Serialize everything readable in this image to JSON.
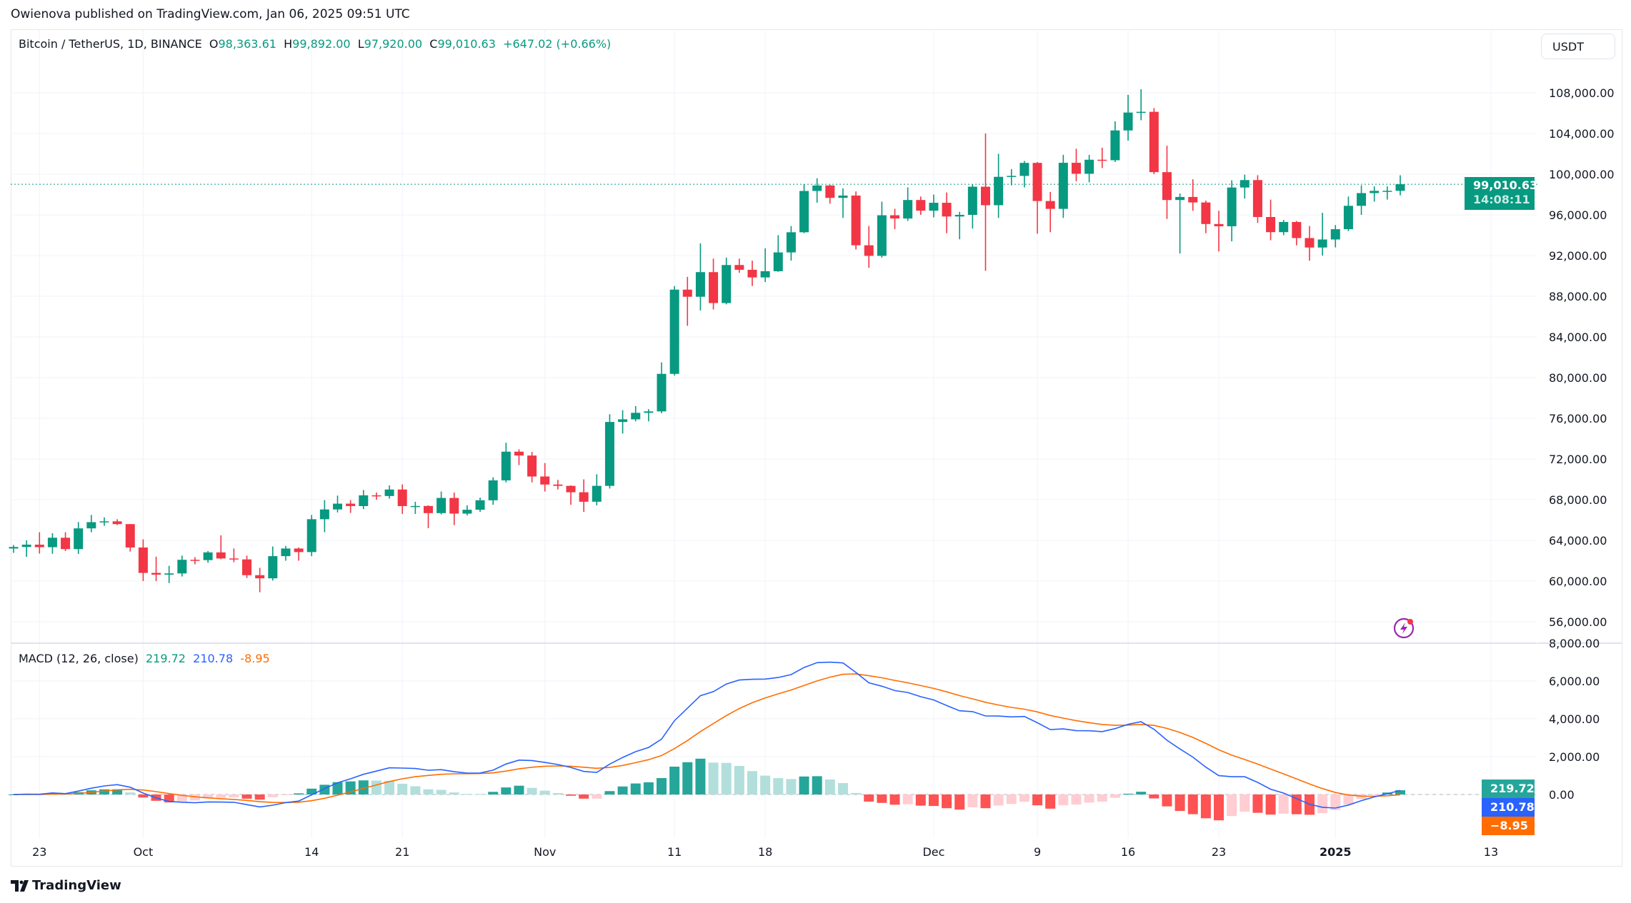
{
  "header": {
    "published": "Owienova published on TradingView.com, Jan 06, 2025 09:51 UTC"
  },
  "legend": {
    "symbol": "Bitcoin / TetherUS, 1D, BINANCE",
    "open_label": "O",
    "open": "98,363.61",
    "high_label": "H",
    "high": "99,892.00",
    "low_label": "L",
    "low": "97,920.00",
    "close_label": "C",
    "close": "99,010.63",
    "change": "+647.02 (+0.66%)"
  },
  "currency_button": "USDT",
  "price_tag": {
    "price": "99,010.63",
    "countdown": "14:08:11"
  },
  "macd_legend": {
    "title": "MACD (12, 26, close)",
    "v1": "219.72",
    "v2": "210.78",
    "v3": "-8.95"
  },
  "macd_tags": {
    "histogram": "219.72",
    "macd": "210.78",
    "signal": "−8.95"
  },
  "footer": {
    "logo_text": "TradingView"
  },
  "colors": {
    "up": "#089981",
    "down": "#f23645",
    "macd": "#2962ff",
    "signal": "#ff6d00",
    "hist_up": "#26a69a",
    "hist_up_light": "#b2dfdb",
    "hist_down": "#ff5252",
    "hist_down_light": "#ffcdd2"
  },
  "icons": {
    "alert": "lightning-icon",
    "logo": "tradingview-logo-icon"
  },
  "chart_data": [
    {
      "type": "candlestick",
      "title": "Bitcoin / TetherUS, 1D, BINANCE",
      "y_ticks": [
        "108,000.00",
        "104,000.00",
        "100,000.00",
        "96,000.00",
        "92,000.00",
        "88,000.00",
        "84,000.00",
        "80,000.00",
        "76,000.00",
        "72,000.00",
        "68,000.00",
        "64,000.00",
        "60,000.00",
        "56,000.00"
      ],
      "x_ticks": [
        "23",
        "Oct",
        "14",
        "21",
        "Nov",
        "11",
        "18",
        "Dec",
        "9",
        "16",
        "23",
        "2025",
        "13"
      ],
      "x_tick_dates": [
        "2024-09-23",
        "2024-10-01",
        "2024-10-14",
        "2024-10-21",
        "2024-11-01",
        "2024-11-11",
        "2024-11-18",
        "2024-12-01",
        "2024-12-09",
        "2024-12-16",
        "2024-12-23",
        "2025-01-01",
        "2025-01-13"
      ],
      "ylim": [
        55000,
        111000
      ],
      "grid": true,
      "candles": [
        [
          "2024-09-21",
          63200,
          63550,
          62770,
          63350
        ],
        [
          "2024-09-22",
          63350,
          64000,
          62380,
          63580
        ],
        [
          "2024-09-23",
          63580,
          64800,
          62700,
          63330
        ],
        [
          "2024-09-24",
          63330,
          64700,
          62680,
          64260
        ],
        [
          "2024-09-25",
          64260,
          64800,
          62950,
          63140
        ],
        [
          "2024-09-26",
          63140,
          65800,
          62670,
          65180
        ],
        [
          "2024-09-27",
          65180,
          66500,
          64800,
          65790
        ],
        [
          "2024-09-28",
          65790,
          66260,
          65430,
          65870
        ],
        [
          "2024-09-29",
          65870,
          66080,
          65500,
          65600
        ],
        [
          "2024-09-30",
          65600,
          65600,
          62900,
          63300
        ],
        [
          "2024-10-01",
          63300,
          64100,
          60000,
          60800
        ],
        [
          "2024-10-02",
          60800,
          62400,
          60000,
          60630
        ],
        [
          "2024-10-03",
          60630,
          61500,
          59800,
          60750
        ],
        [
          "2024-10-04",
          60750,
          62500,
          60450,
          62090
        ],
        [
          "2024-10-05",
          62090,
          62350,
          61650,
          62060
        ],
        [
          "2024-10-06",
          62060,
          62950,
          61800,
          62820
        ],
        [
          "2024-10-07",
          62820,
          64500,
          62150,
          62220
        ],
        [
          "2024-10-08",
          62220,
          63200,
          61850,
          62130
        ],
        [
          "2024-10-09",
          62130,
          62500,
          60300,
          60580
        ],
        [
          "2024-10-10",
          60580,
          61300,
          58900,
          60270
        ],
        [
          "2024-10-11",
          60270,
          63400,
          60050,
          62450
        ],
        [
          "2024-10-12",
          62450,
          63450,
          62000,
          63200
        ],
        [
          "2024-10-13",
          63200,
          63300,
          62000,
          62850
        ],
        [
          "2024-10-14",
          62850,
          66500,
          62450,
          66080
        ],
        [
          "2024-10-15",
          66080,
          67950,
          64800,
          67040
        ],
        [
          "2024-10-16",
          67040,
          68400,
          66750,
          67610
        ],
        [
          "2024-10-17",
          67610,
          67950,
          66700,
          67370
        ],
        [
          "2024-10-18",
          67370,
          68950,
          67070,
          68430
        ],
        [
          "2024-10-19",
          68430,
          68700,
          68000,
          68360
        ],
        [
          "2024-10-20",
          68360,
          69400,
          68100,
          69000
        ],
        [
          "2024-10-21",
          69000,
          69500,
          66600,
          67370
        ],
        [
          "2024-10-22",
          67370,
          67800,
          66600,
          67380
        ],
        [
          "2024-10-23",
          67380,
          67450,
          65200,
          66680
        ],
        [
          "2024-10-24",
          66680,
          68800,
          66550,
          68170
        ],
        [
          "2024-10-25",
          68170,
          68700,
          65500,
          66630
        ],
        [
          "2024-10-26",
          66630,
          67450,
          66450,
          67010
        ],
        [
          "2024-10-27",
          67010,
          68200,
          66800,
          67940
        ],
        [
          "2024-10-28",
          67940,
          70200,
          67500,
          69900
        ],
        [
          "2024-10-29",
          69900,
          73600,
          69700,
          72720
        ],
        [
          "2024-10-30",
          72720,
          72950,
          71400,
          72340
        ],
        [
          "2024-10-31",
          72340,
          72700,
          69700,
          70280
        ],
        [
          "2024-11-01",
          70280,
          71600,
          68800,
          69490
        ],
        [
          "2024-11-02",
          69490,
          69950,
          69000,
          69360
        ],
        [
          "2024-11-03",
          69360,
          69400,
          67500,
          68730
        ],
        [
          "2024-11-04",
          68730,
          70000,
          66800,
          67800
        ],
        [
          "2024-11-05",
          67800,
          70500,
          67450,
          69360
        ],
        [
          "2024-11-06",
          69360,
          76400,
          69100,
          75640
        ],
        [
          "2024-11-07",
          75640,
          76800,
          74500,
          75900
        ],
        [
          "2024-11-08",
          75900,
          77200,
          75700,
          76540
        ],
        [
          "2024-11-09",
          76540,
          76900,
          75700,
          76680
        ],
        [
          "2024-11-10",
          76680,
          81500,
          76500,
          80370
        ],
        [
          "2024-11-11",
          80370,
          89000,
          80200,
          88650
        ],
        [
          "2024-11-12",
          88650,
          89900,
          85100,
          87950
        ],
        [
          "2024-11-13",
          87950,
          93200,
          86600,
          90370
        ],
        [
          "2024-11-14",
          90370,
          91700,
          86700,
          87330
        ],
        [
          "2024-11-15",
          87330,
          91800,
          87200,
          91070
        ],
        [
          "2024-11-16",
          91070,
          91700,
          90300,
          90600
        ],
        [
          "2024-11-17",
          90600,
          91500,
          89000,
          89850
        ],
        [
          "2024-11-18",
          89850,
          92700,
          89400,
          90460
        ],
        [
          "2024-11-19",
          90460,
          94000,
          90400,
          92310
        ],
        [
          "2024-11-20",
          92310,
          94900,
          91500,
          94290
        ],
        [
          "2024-11-21",
          94290,
          99000,
          94200,
          98350
        ],
        [
          "2024-11-22",
          98350,
          99600,
          97200,
          98890
        ],
        [
          "2024-11-23",
          98890,
          98950,
          97100,
          97670
        ],
        [
          "2024-11-24",
          97670,
          98600,
          95700,
          97900
        ],
        [
          "2024-11-25",
          97900,
          98300,
          92600,
          93010
        ],
        [
          "2024-11-26",
          93010,
          94900,
          90800,
          91970
        ],
        [
          "2024-11-27",
          91970,
          97300,
          91800,
          95960
        ],
        [
          "2024-11-28",
          95960,
          96600,
          94600,
          95640
        ],
        [
          "2024-11-29",
          95640,
          98700,
          95400,
          97460
        ],
        [
          "2024-11-30",
          97460,
          97800,
          96000,
          96410
        ],
        [
          "2024-12-01",
          96410,
          98000,
          95750,
          97190
        ],
        [
          "2024-12-02",
          97190,
          98200,
          94200,
          95840
        ],
        [
          "2024-12-03",
          95840,
          96300,
          93600,
          96000
        ],
        [
          "2024-12-04",
          96000,
          99000,
          94650,
          98770
        ],
        [
          "2024-12-05",
          98770,
          104000,
          90500,
          96950
        ],
        [
          "2024-12-06",
          96950,
          102000,
          95700,
          99740
        ],
        [
          "2024-12-07",
          99740,
          100500,
          98900,
          99830
        ],
        [
          "2024-12-08",
          99830,
          101300,
          98700,
          101110
        ],
        [
          "2024-12-09",
          101110,
          101200,
          94150,
          97360
        ],
        [
          "2024-12-10",
          97360,
          98250,
          94300,
          96590
        ],
        [
          "2024-12-11",
          96590,
          101900,
          95700,
          101120
        ],
        [
          "2024-12-12",
          101120,
          102500,
          99300,
          100040
        ],
        [
          "2024-12-13",
          100040,
          101900,
          99200,
          101420
        ],
        [
          "2024-12-14",
          101420,
          102600,
          100600,
          101370
        ],
        [
          "2024-12-15",
          101370,
          105200,
          101200,
          104300
        ],
        [
          "2024-12-16",
          104300,
          107800,
          103300,
          106060
        ],
        [
          "2024-12-17",
          106060,
          108350,
          105300,
          106130
        ],
        [
          "2024-12-18",
          106130,
          106500,
          100000,
          100200
        ],
        [
          "2024-12-19",
          100200,
          102800,
          95600,
          97460
        ],
        [
          "2024-12-20",
          97460,
          98100,
          92200,
          97760
        ],
        [
          "2024-12-21",
          97760,
          99500,
          96400,
          97220
        ],
        [
          "2024-12-22",
          97220,
          97400,
          94200,
          95100
        ],
        [
          "2024-12-23",
          95100,
          96400,
          92400,
          94880
        ],
        [
          "2024-12-24",
          94880,
          99400,
          93400,
          98690
        ],
        [
          "2024-12-25",
          98690,
          99950,
          97600,
          99420
        ],
        [
          "2024-12-26",
          99420,
          99900,
          95200,
          95790
        ],
        [
          "2024-12-27",
          95790,
          97500,
          93500,
          94300
        ],
        [
          "2024-12-28",
          94300,
          95500,
          94000,
          95300
        ],
        [
          "2024-12-29",
          95300,
          95400,
          93000,
          93720
        ],
        [
          "2024-12-30",
          93720,
          94900,
          91500,
          92790
        ],
        [
          "2024-12-31",
          92790,
          96200,
          92000,
          93580
        ],
        [
          "2025-01-01",
          93580,
          95000,
          92800,
          94590
        ],
        [
          "2025-01-02",
          94590,
          97800,
          94400,
          96890
        ],
        [
          "2025-01-03",
          96890,
          98900,
          96000,
          98140
        ],
        [
          "2025-01-04",
          98140,
          98800,
          97300,
          98360
        ],
        [
          "2025-01-05",
          98360,
          98800,
          97500,
          98363.61
        ],
        [
          "2025-01-06",
          98363.61,
          99892,
          97920,
          99010.63
        ]
      ],
      "last_price": 99010.63
    },
    {
      "type": "line+bar",
      "title": "MACD (12, 26, close)",
      "fast": 12,
      "slow": 26,
      "y_ticks": [
        "8,000.00",
        "6,000.00",
        "4,000.00",
        "2,000.00",
        "0.00"
      ],
      "ylim": [
        -2500,
        8000
      ],
      "series": [
        {
          "name": "MACD"
        },
        {
          "name": "Signal"
        },
        {
          "name": "Histogram"
        }
      ]
    }
  ]
}
